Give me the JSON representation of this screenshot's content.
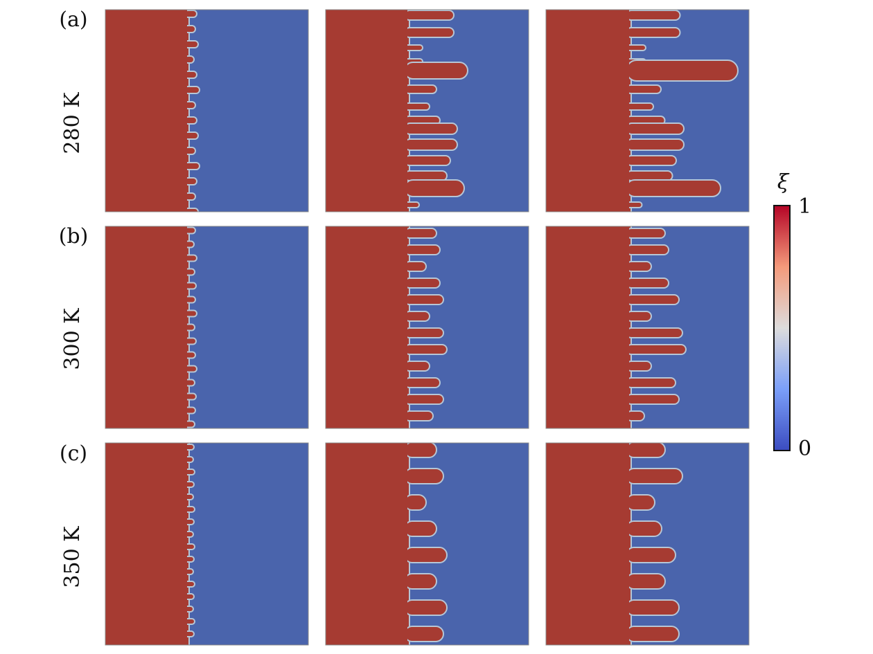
{
  "rows": [
    {
      "label": "(a)",
      "temperature": "280 K"
    },
    {
      "label": "(b)",
      "temperature": "300 K"
    },
    {
      "label": "(c)",
      "temperature": "350 K"
    }
  ],
  "colorbar": {
    "symbol": "ξ",
    "max": 1,
    "min": 0
  }
}
